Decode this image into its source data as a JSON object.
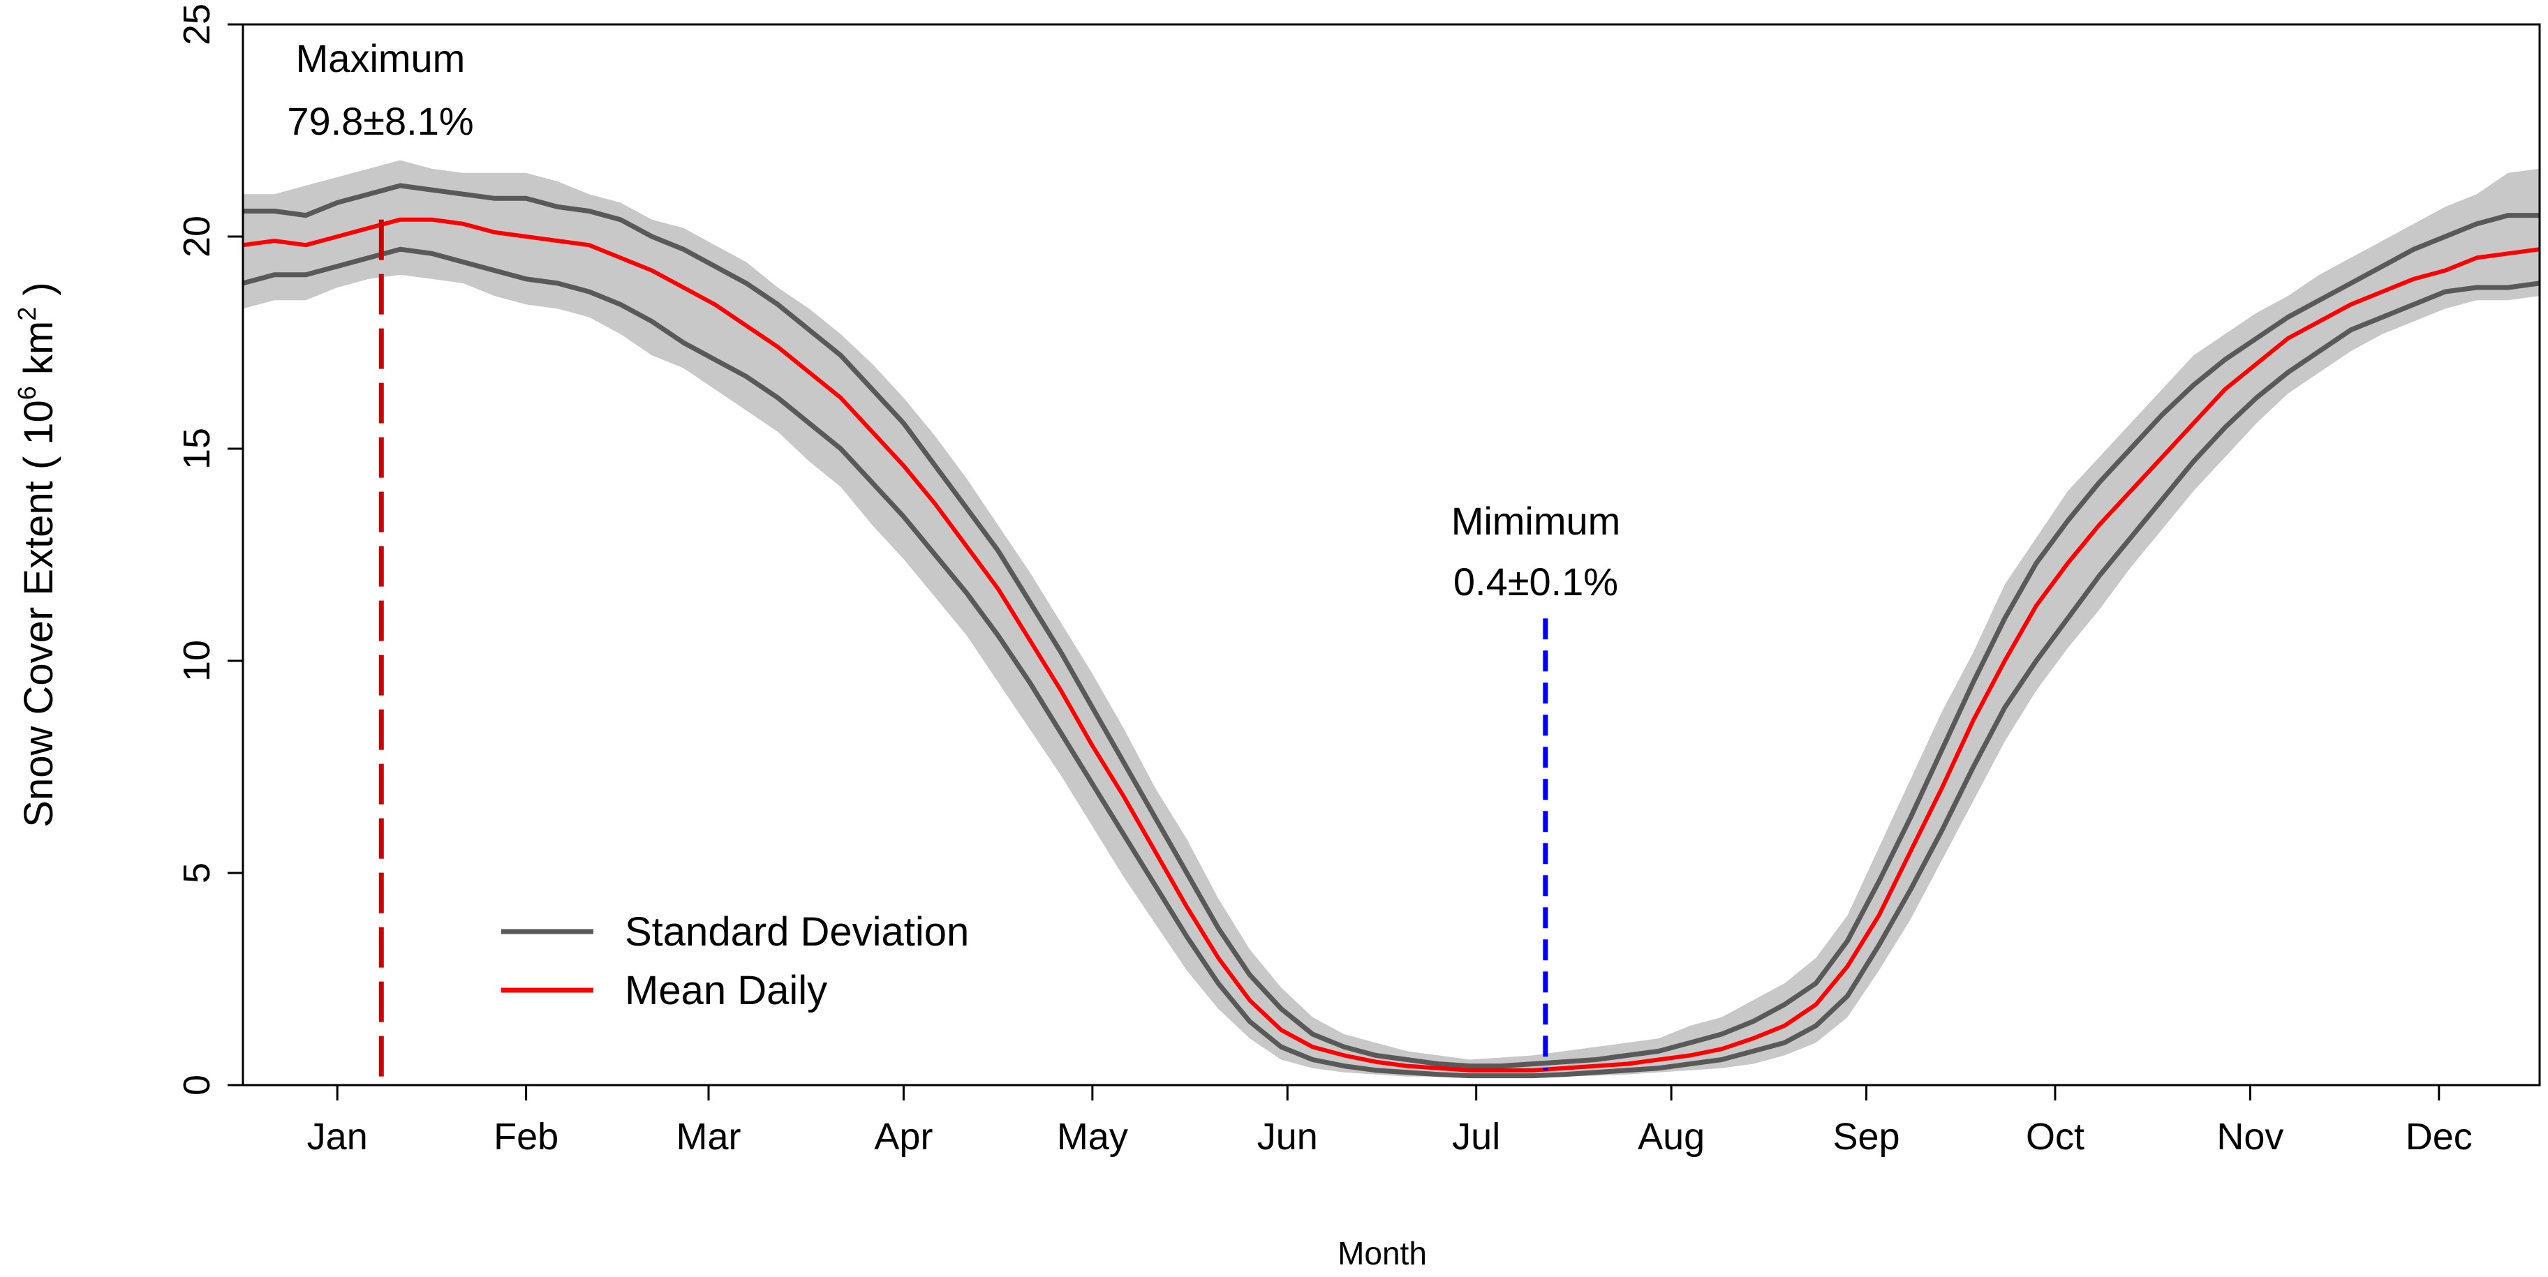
{
  "chart_data": {
    "type": "line",
    "xlabel": "Month",
    "ylabel": "Snow Cover Extent ( 10",
    "ylabel_exp": "6",
    "ylabel_unit": " km",
    "ylabel_unit_exp": "2",
    "ylabel_close": "  )",
    "ylim": [
      0,
      25
    ],
    "xlim_days": [
      0,
      365
    ],
    "y_ticks": [
      "0",
      "5",
      "10",
      "15",
      "20",
      "25"
    ],
    "y_tick_values": [
      0,
      5,
      10,
      15,
      20,
      25
    ],
    "x_ticks": [
      "Jan",
      "Feb",
      "Mar",
      "Apr",
      "May",
      "Jun",
      "Jul",
      "Aug",
      "Sep",
      "Oct",
      "Nov",
      "Dec"
    ],
    "x_tick_days": [
      15,
      45,
      74,
      105,
      135,
      166,
      196,
      227,
      258,
      288,
      319,
      349
    ],
    "legend": {
      "position": "bottom-left",
      "entries": [
        {
          "label": "Standard Deviation",
          "color": "#595959"
        },
        {
          "label": "Mean Daily",
          "color": "#ff0000"
        }
      ]
    },
    "annotations": {
      "max_title": "Maximum",
      "max_value": "79.8±8.1%",
      "max_day": 22,
      "max_color": "#cc0000",
      "min_title": "Mimimum",
      "min_value": "0.4±0.1%",
      "min_day": 207,
      "min_line_top": 11,
      "min_color": "#0000ee"
    },
    "series_days": [
      0,
      5,
      10,
      15,
      20,
      25,
      30,
      35,
      40,
      45,
      50,
      55,
      60,
      65,
      70,
      75,
      80,
      85,
      90,
      95,
      100,
      105,
      110,
      115,
      120,
      125,
      130,
      135,
      140,
      145,
      150,
      155,
      160,
      165,
      170,
      175,
      180,
      185,
      190,
      195,
      200,
      205,
      210,
      215,
      220,
      225,
      230,
      235,
      240,
      245,
      250,
      255,
      260,
      265,
      270,
      275,
      280,
      285,
      290,
      295,
      300,
      305,
      310,
      315,
      320,
      325,
      330,
      335,
      340,
      345,
      350,
      355,
      360,
      365
    ],
    "series": [
      {
        "name": "Mean Daily",
        "color": "#ff0000",
        "values": [
          19.8,
          19.9,
          19.8,
          20.0,
          20.2,
          20.4,
          20.4,
          20.3,
          20.1,
          20.0,
          19.9,
          19.8,
          19.5,
          19.2,
          18.8,
          18.4,
          17.9,
          17.4,
          16.8,
          16.2,
          15.4,
          14.6,
          13.7,
          12.7,
          11.7,
          10.5,
          9.3,
          8.0,
          6.8,
          5.5,
          4.2,
          3.0,
          2.0,
          1.3,
          0.9,
          0.7,
          0.55,
          0.45,
          0.4,
          0.35,
          0.35,
          0.35,
          0.4,
          0.45,
          0.5,
          0.6,
          0.7,
          0.85,
          1.1,
          1.4,
          1.9,
          2.8,
          4.0,
          5.5,
          7.0,
          8.6,
          10.0,
          11.3,
          12.3,
          13.2,
          14.0,
          14.8,
          15.6,
          16.4,
          17.0,
          17.6,
          18.0,
          18.4,
          18.7,
          19.0,
          19.2,
          19.5,
          19.6,
          19.7
        ]
      },
      {
        "name": "Standard Deviation Upper",
        "color": "#595959",
        "values": [
          20.6,
          20.6,
          20.5,
          20.8,
          21.0,
          21.2,
          21.1,
          21.0,
          20.9,
          20.9,
          20.7,
          20.6,
          20.4,
          20.0,
          19.7,
          19.3,
          18.9,
          18.4,
          17.8,
          17.2,
          16.4,
          15.6,
          14.6,
          13.6,
          12.6,
          11.4,
          10.2,
          8.9,
          7.6,
          6.3,
          5.0,
          3.7,
          2.6,
          1.8,
          1.2,
          0.9,
          0.7,
          0.6,
          0.5,
          0.45,
          0.45,
          0.5,
          0.55,
          0.6,
          0.7,
          0.8,
          1.0,
          1.2,
          1.5,
          1.9,
          2.4,
          3.4,
          4.8,
          6.3,
          7.9,
          9.5,
          11.0,
          12.3,
          13.3,
          14.2,
          15.0,
          15.8,
          16.5,
          17.1,
          17.6,
          18.1,
          18.5,
          18.9,
          19.3,
          19.7,
          20.0,
          20.3,
          20.5,
          20.5
        ]
      },
      {
        "name": "Standard Deviation Lower",
        "color": "#595959",
        "values": [
          18.9,
          19.1,
          19.1,
          19.3,
          19.5,
          19.7,
          19.6,
          19.4,
          19.2,
          19.0,
          18.9,
          18.7,
          18.4,
          18.0,
          17.5,
          17.1,
          16.7,
          16.2,
          15.6,
          15.0,
          14.2,
          13.4,
          12.5,
          11.6,
          10.6,
          9.5,
          8.3,
          7.1,
          5.9,
          4.7,
          3.5,
          2.4,
          1.5,
          0.9,
          0.6,
          0.45,
          0.35,
          0.3,
          0.25,
          0.22,
          0.22,
          0.22,
          0.25,
          0.3,
          0.35,
          0.4,
          0.5,
          0.6,
          0.8,
          1.0,
          1.4,
          2.1,
          3.3,
          4.6,
          6.0,
          7.5,
          8.9,
          10.0,
          11.0,
          12.0,
          12.9,
          13.8,
          14.7,
          15.5,
          16.2,
          16.8,
          17.3,
          17.8,
          18.1,
          18.4,
          18.7,
          18.8,
          18.8,
          18.9
        ]
      },
      {
        "name": "Range Upper",
        "color": "#c8c8c8",
        "values": [
          21.0,
          21.0,
          21.2,
          21.4,
          21.6,
          21.8,
          21.6,
          21.5,
          21.5,
          21.5,
          21.3,
          21.0,
          20.8,
          20.4,
          20.2,
          19.8,
          19.4,
          18.8,
          18.3,
          17.7,
          17.0,
          16.2,
          15.3,
          14.3,
          13.2,
          12.1,
          10.9,
          9.7,
          8.4,
          7.0,
          5.8,
          4.4,
          3.2,
          2.3,
          1.6,
          1.2,
          1.0,
          0.8,
          0.7,
          0.6,
          0.65,
          0.7,
          0.8,
          0.9,
          1.0,
          1.1,
          1.4,
          1.6,
          2.0,
          2.4,
          3.0,
          4.0,
          5.6,
          7.2,
          8.8,
          10.2,
          11.8,
          12.9,
          14.0,
          14.8,
          15.6,
          16.4,
          17.2,
          17.7,
          18.2,
          18.6,
          19.1,
          19.5,
          19.9,
          20.3,
          20.7,
          21.0,
          21.5,
          21.6
        ]
      },
      {
        "name": "Range Lower",
        "color": "#c8c8c8",
        "values": [
          18.3,
          18.5,
          18.5,
          18.8,
          19.0,
          19.1,
          19.0,
          18.9,
          18.6,
          18.4,
          18.3,
          18.1,
          17.7,
          17.2,
          16.9,
          16.4,
          15.9,
          15.4,
          14.7,
          14.1,
          13.2,
          12.4,
          11.5,
          10.6,
          9.5,
          8.4,
          7.3,
          6.1,
          4.9,
          3.8,
          2.7,
          1.8,
          1.1,
          0.6,
          0.4,
          0.3,
          0.25,
          0.2,
          0.2,
          0.18,
          0.18,
          0.18,
          0.2,
          0.22,
          0.25,
          0.3,
          0.35,
          0.4,
          0.5,
          0.7,
          1.0,
          1.6,
          2.7,
          3.9,
          5.3,
          6.7,
          8.1,
          9.3,
          10.3,
          11.2,
          12.2,
          13.1,
          14.0,
          14.8,
          15.6,
          16.3,
          16.8,
          17.3,
          17.7,
          18.0,
          18.3,
          18.5,
          18.5,
          18.6
        ]
      }
    ]
  }
}
